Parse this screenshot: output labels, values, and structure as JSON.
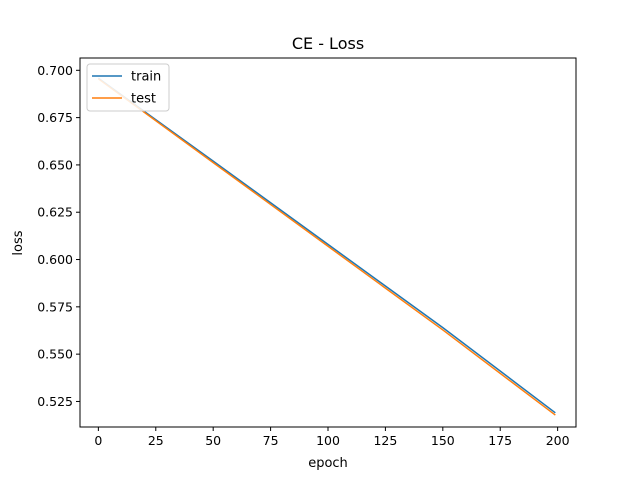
{
  "chart_data": {
    "type": "line",
    "title": "CE - Loss",
    "xlabel": "epoch",
    "ylabel": "loss",
    "xlim": [
      -8,
      208
    ],
    "ylim": [
      0.5115,
      0.7065
    ],
    "xticks": [
      0,
      25,
      50,
      75,
      100,
      125,
      150,
      175,
      200
    ],
    "yticks": [
      0.525,
      0.55,
      0.575,
      0.6,
      0.625,
      0.65,
      0.675,
      0.7
    ],
    "ytick_labels": [
      "0.525",
      "0.550",
      "0.575",
      "0.600",
      "0.625",
      "0.650",
      "0.675",
      "0.700"
    ],
    "grid": false,
    "legend_position": "top-left",
    "series": [
      {
        "name": "train",
        "color": "#1f77b4",
        "x": [
          0,
          50,
          100,
          150,
          199
        ],
        "y": [
          0.6958,
          0.652,
          0.608,
          0.564,
          0.519
        ]
      },
      {
        "name": "test",
        "color": "#ff7f0e",
        "x": [
          0,
          50,
          100,
          150,
          199
        ],
        "y": [
          0.6955,
          0.6512,
          0.607,
          0.5628,
          0.5178
        ]
      }
    ]
  }
}
